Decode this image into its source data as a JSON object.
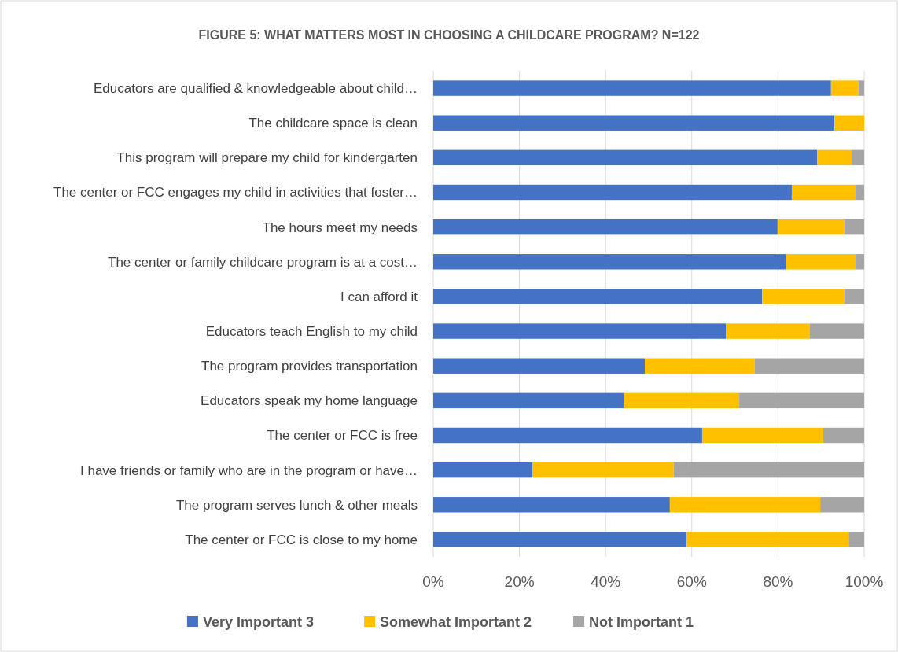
{
  "chart_data": {
    "type": "bar",
    "orientation": "horizontal",
    "stacked": true,
    "title": "FIGURE 5:  WHAT MATTERS MOST IN CHOOSING A CHILDCARE PROGRAM? N=122",
    "categories": [
      "Educators are qualified & knowledgeable about child…",
      "The childcare space is clean",
      "This program will prepare my child for kindergarten",
      "The center or FCC engages my child in activities that foster…",
      "The hours meet my needs",
      "The center or family childcare program is at a cost…",
      "I can afford it",
      "Educators teach English to my child",
      "The program provides transportation",
      "Educators speak my home language",
      "The center or FCC is free",
      "I have friends or family who are in the program or have…",
      "The program serves lunch & other meals",
      "The center or FCC is close to my home"
    ],
    "series": [
      {
        "name": "Very Important 3",
        "color": "#4472c4",
        "values": [
          92.3,
          93.1,
          89.1,
          83.2,
          79.9,
          81.8,
          76.3,
          67.9,
          49.1,
          44.2,
          62.4,
          23.0,
          54.9,
          58.8
        ]
      },
      {
        "name": "Somewhat Important 2",
        "color": "#ffc000",
        "values": [
          6.4,
          6.9,
          8.0,
          14.8,
          15.5,
          16.2,
          19.1,
          19.5,
          25.5,
          26.8,
          28.1,
          32.8,
          34.9,
          37.6
        ]
      },
      {
        "name": "Not Important 1",
        "color": "#a5a5a5",
        "values": [
          1.3,
          0,
          2.9,
          2.0,
          4.6,
          2.0,
          4.6,
          12.6,
          25.4,
          29.0,
          9.5,
          44.2,
          10.2,
          3.6
        ]
      }
    ],
    "xlim": [
      0,
      100
    ],
    "xticks": [
      {
        "value": 0,
        "label": "0%"
      },
      {
        "value": 20,
        "label": "20%"
      },
      {
        "value": 40,
        "label": "40%"
      },
      {
        "value": 60,
        "label": "60%"
      },
      {
        "value": 80,
        "label": "80%"
      },
      {
        "value": 100,
        "label": "100%"
      }
    ],
    "grid": "x",
    "legend": "bottom"
  }
}
